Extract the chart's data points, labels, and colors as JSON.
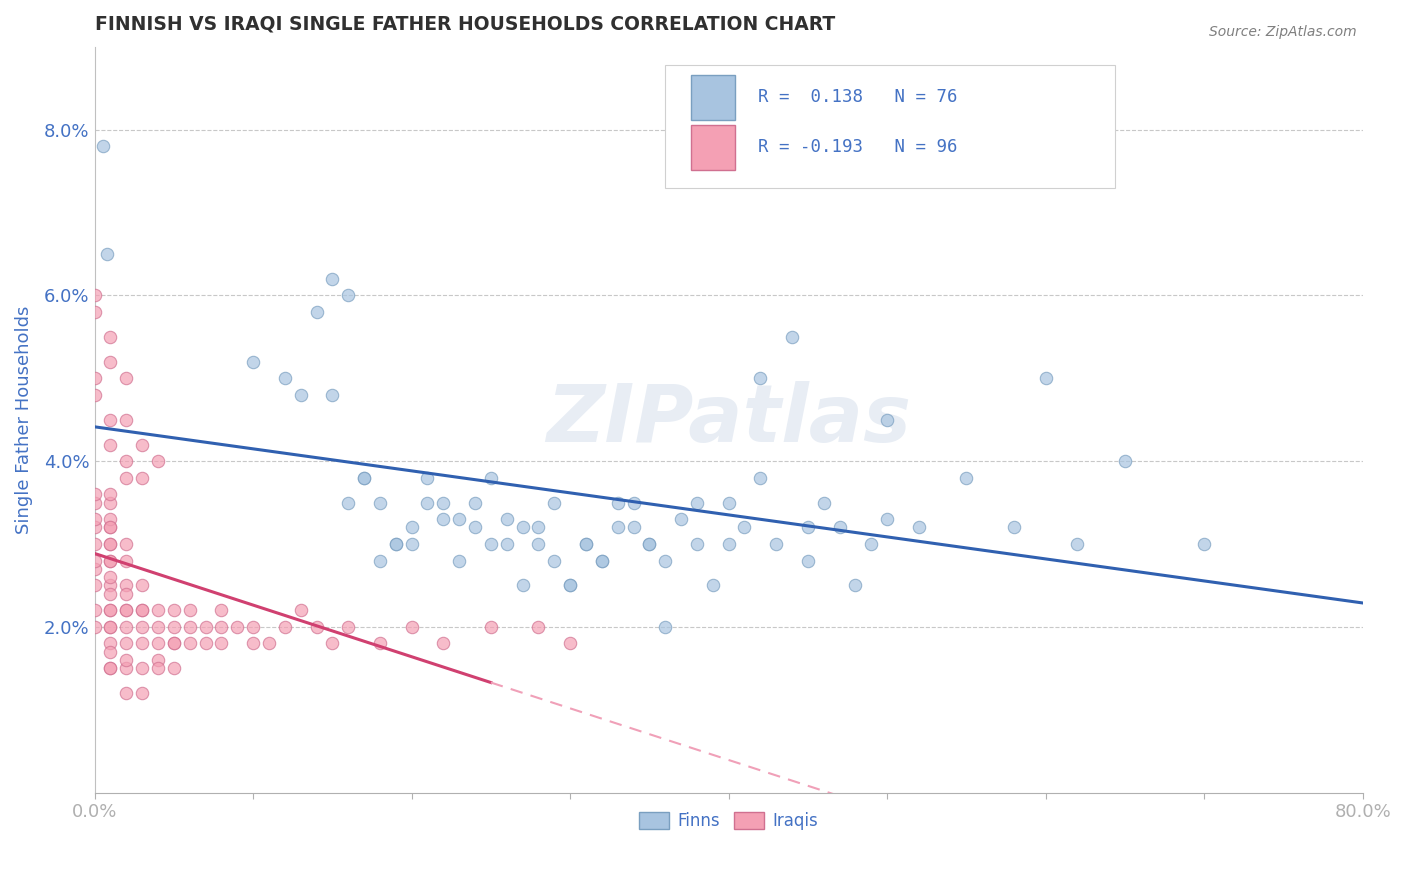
{
  "title": "FINNISH VS IRAQI SINGLE FATHER HOUSEHOLDS CORRELATION CHART",
  "source": "Source: ZipAtlas.com",
  "ylabel": "Single Father Households",
  "watermark": "ZIPatlas",
  "finn_color": "#a8c4e0",
  "finn_edge_color": "#7a9fc0",
  "iraqi_color": "#f4a0b4",
  "iraqi_edge_color": "#d07090",
  "finn_line_color": "#3060b0",
  "iraqi_line_solid_color": "#d04070",
  "iraqi_line_dash_color": "#f0a0b8",
  "title_color": "#303030",
  "axis_label_color": "#4472c4",
  "legend_text_color": "#4472c4",
  "grid_color": "#c8c8c8",
  "ytick_labels": [
    "2.0%",
    "4.0%",
    "6.0%",
    "8.0%"
  ],
  "ytick_values": [
    0.02,
    0.04,
    0.06,
    0.08
  ],
  "xlim": [
    0.0,
    0.8
  ],
  "ylim": [
    0.0,
    0.09
  ],
  "finn_r": 0.138,
  "finn_n": 76,
  "iraqi_r": -0.193,
  "iraqi_n": 96,
  "finns_x": [
    0.005,
    0.008,
    0.1,
    0.12,
    0.13,
    0.14,
    0.15,
    0.16,
    0.17,
    0.18,
    0.19,
    0.2,
    0.21,
    0.22,
    0.23,
    0.24,
    0.25,
    0.26,
    0.27,
    0.28,
    0.29,
    0.3,
    0.31,
    0.32,
    0.33,
    0.34,
    0.35,
    0.36,
    0.37,
    0.38,
    0.39,
    0.4,
    0.41,
    0.42,
    0.43,
    0.44,
    0.45,
    0.46,
    0.47,
    0.48,
    0.49,
    0.5,
    0.52,
    0.55,
    0.58,
    0.6,
    0.62,
    0.65,
    0.7,
    0.16,
    0.18,
    0.2,
    0.22,
    0.24,
    0.26,
    0.28,
    0.3,
    0.32,
    0.34,
    0.36,
    0.15,
    0.17,
    0.19,
    0.21,
    0.23,
    0.25,
    0.27,
    0.29,
    0.31,
    0.33,
    0.35,
    0.38,
    0.42,
    0.5,
    0.45,
    0.4
  ],
  "finns_y": [
    0.078,
    0.065,
    0.052,
    0.05,
    0.048,
    0.058,
    0.062,
    0.06,
    0.038,
    0.035,
    0.03,
    0.032,
    0.038,
    0.033,
    0.028,
    0.035,
    0.03,
    0.03,
    0.025,
    0.032,
    0.028,
    0.025,
    0.03,
    0.028,
    0.032,
    0.035,
    0.03,
    0.028,
    0.033,
    0.03,
    0.025,
    0.035,
    0.032,
    0.05,
    0.03,
    0.055,
    0.028,
    0.035,
    0.032,
    0.025,
    0.03,
    0.033,
    0.032,
    0.038,
    0.032,
    0.05,
    0.03,
    0.04,
    0.03,
    0.035,
    0.028,
    0.03,
    0.035,
    0.032,
    0.033,
    0.03,
    0.025,
    0.028,
    0.032,
    0.02,
    0.048,
    0.038,
    0.03,
    0.035,
    0.033,
    0.038,
    0.032,
    0.035,
    0.03,
    0.035,
    0.03,
    0.035,
    0.038,
    0.045,
    0.032,
    0.03
  ],
  "iraqis_x": [
    0.0,
    0.0,
    0.0,
    0.0,
    0.0,
    0.0,
    0.0,
    0.0,
    0.0,
    0.0,
    0.01,
    0.01,
    0.01,
    0.01,
    0.01,
    0.01,
    0.01,
    0.01,
    0.01,
    0.01,
    0.01,
    0.01,
    0.01,
    0.01,
    0.01,
    0.01,
    0.01,
    0.01,
    0.01,
    0.01,
    0.02,
    0.02,
    0.02,
    0.02,
    0.02,
    0.02,
    0.02,
    0.02,
    0.02,
    0.02,
    0.02,
    0.03,
    0.03,
    0.03,
    0.03,
    0.03,
    0.03,
    0.03,
    0.04,
    0.04,
    0.04,
    0.04,
    0.04,
    0.05,
    0.05,
    0.05,
    0.05,
    0.06,
    0.06,
    0.07,
    0.07,
    0.08,
    0.08,
    0.09,
    0.1,
    0.11,
    0.12,
    0.13,
    0.14,
    0.15,
    0.16,
    0.18,
    0.2,
    0.22,
    0.25,
    0.28,
    0.3,
    0.0,
    0.0,
    0.01,
    0.01,
    0.02,
    0.02,
    0.03,
    0.03,
    0.04,
    0.05,
    0.06,
    0.08,
    0.1,
    0.0,
    0.0,
    0.01,
    0.01,
    0.02,
    0.02
  ],
  "iraqis_y": [
    0.025,
    0.027,
    0.03,
    0.032,
    0.033,
    0.035,
    0.036,
    0.028,
    0.022,
    0.02,
    0.025,
    0.028,
    0.03,
    0.032,
    0.033,
    0.035,
    0.036,
    0.024,
    0.022,
    0.02,
    0.018,
    0.015,
    0.026,
    0.028,
    0.03,
    0.032,
    0.022,
    0.02,
    0.017,
    0.015,
    0.025,
    0.028,
    0.03,
    0.022,
    0.02,
    0.018,
    0.015,
    0.012,
    0.024,
    0.022,
    0.016,
    0.022,
    0.02,
    0.018,
    0.015,
    0.012,
    0.025,
    0.022,
    0.02,
    0.018,
    0.016,
    0.015,
    0.022,
    0.02,
    0.018,
    0.015,
    0.022,
    0.02,
    0.018,
    0.02,
    0.018,
    0.018,
    0.022,
    0.02,
    0.02,
    0.018,
    0.02,
    0.022,
    0.02,
    0.018,
    0.02,
    0.018,
    0.02,
    0.018,
    0.02,
    0.02,
    0.018,
    0.05,
    0.048,
    0.045,
    0.042,
    0.04,
    0.038,
    0.042,
    0.038,
    0.04,
    0.018,
    0.022,
    0.02,
    0.018,
    0.058,
    0.06,
    0.055,
    0.052,
    0.05,
    0.045
  ]
}
